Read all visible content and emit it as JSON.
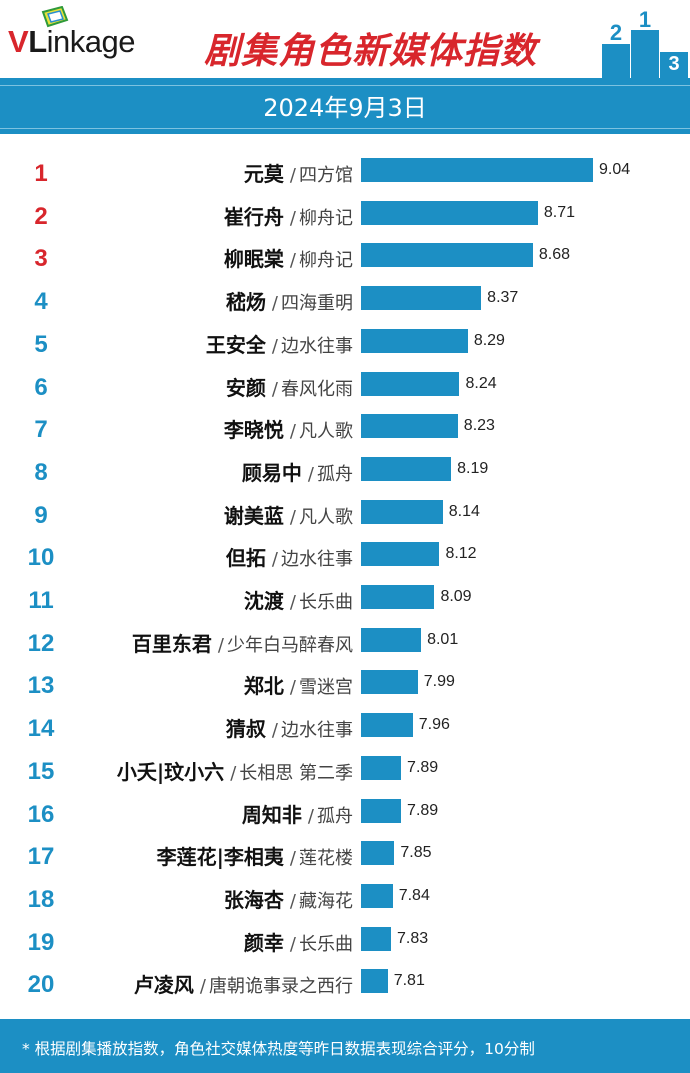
{
  "brand": {
    "logo_v": "V",
    "logo_l": "L",
    "logo_rest": "inkage"
  },
  "header": {
    "title": "剧集角色新媒体指数",
    "date": "2024年9月3日"
  },
  "podium": {
    "labels": [
      "2",
      "1",
      "3"
    ],
    "color": "#1c8fc4"
  },
  "colors": {
    "accent": "#1c8fc4",
    "top_rank": "#d8262c"
  },
  "chart_data": {
    "type": "bar",
    "orientation": "horizontal",
    "title": "剧集角色新媒体指数",
    "subtitle": "2024年9月3日",
    "categories": [
      {
        "rank": "1",
        "name": "元莫",
        "show": "四方馆"
      },
      {
        "rank": "2",
        "name": "崔行舟",
        "show": "柳舟记"
      },
      {
        "rank": "3",
        "name": "柳眠棠",
        "show": "柳舟记"
      },
      {
        "rank": "4",
        "name": "嵇炀",
        "show": "四海重明"
      },
      {
        "rank": "5",
        "name": "王安全",
        "show": "边水往事"
      },
      {
        "rank": "6",
        "name": "安颜",
        "show": "春风化雨"
      },
      {
        "rank": "7",
        "name": "李晓悦",
        "show": "凡人歌"
      },
      {
        "rank": "8",
        "name": "顾易中",
        "show": "孤舟"
      },
      {
        "rank": "9",
        "name": "谢美蓝",
        "show": "凡人歌"
      },
      {
        "rank": "10",
        "name": "但拓",
        "show": "边水往事"
      },
      {
        "rank": "11",
        "name": "沈渡",
        "show": "长乐曲"
      },
      {
        "rank": "12",
        "name": "百里东君",
        "show": "少年白马醉春风"
      },
      {
        "rank": "13",
        "name": "郑北",
        "show": "雪迷宫"
      },
      {
        "rank": "14",
        "name": "猜叔",
        "show": "边水往事"
      },
      {
        "rank": "15",
        "name": "小夭|玟小六",
        "show": "长相思 第二季"
      },
      {
        "rank": "16",
        "name": "周知非",
        "show": "孤舟"
      },
      {
        "rank": "17",
        "name": "李莲花|李相夷",
        "show": "莲花楼"
      },
      {
        "rank": "18",
        "name": "张海杏",
        "show": "藏海花"
      },
      {
        "rank": "19",
        "name": "颜幸",
        "show": "长乐曲"
      },
      {
        "rank": "20",
        "name": "卢凌风",
        "show": "唐朝诡事录之西行"
      }
    ],
    "values": [
      9.04,
      8.71,
      8.68,
      8.37,
      8.29,
      8.24,
      8.23,
      8.19,
      8.14,
      8.12,
      8.09,
      8.01,
      7.99,
      7.96,
      7.89,
      7.89,
      7.85,
      7.84,
      7.83,
      7.81
    ],
    "separator": "/",
    "xlim": [
      7.65,
      9.04
    ],
    "grid": false,
    "legend": "none"
  },
  "footer": {
    "note": "* 根据剧集播放指数，角色社交媒体热度等昨日数据表现综合评分，10分制"
  }
}
